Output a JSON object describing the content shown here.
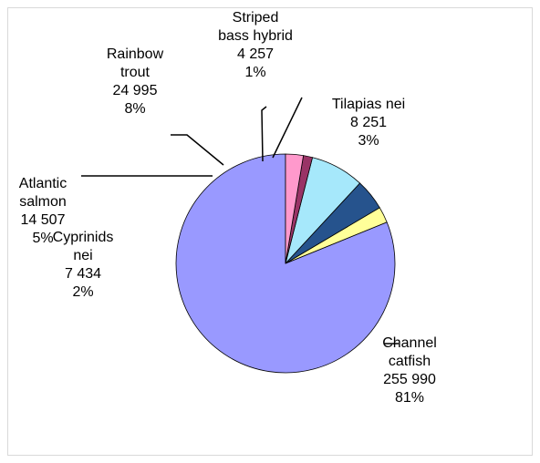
{
  "chart_data": {
    "type": "pie",
    "title": "",
    "categories": [
      "Channel catfish",
      "Cyprinids nei",
      "Atlantic salmon",
      "Rainbow trout",
      "Striped bass hybrid",
      "Tilapias nei"
    ],
    "label_lines": [
      [
        "Channel",
        "catfish",
        "255 990",
        "81%"
      ],
      [
        "Cyprinids",
        "nei",
        "7 434",
        "2%"
      ],
      [
        "Atlantic",
        "salmon",
        "14 507",
        "5%"
      ],
      [
        "Rainbow",
        "trout",
        "24 995",
        "8%"
      ],
      [
        "Striped",
        "bass hybrid",
        "4 257",
        "1%"
      ],
      [
        "Tilapias nei",
        "8 251",
        "3%"
      ]
    ],
    "values": [
      255990,
      7434,
      14507,
      24995,
      4257,
      8251
    ],
    "percent_labels": [
      "81%",
      "2%",
      "5%",
      "8%",
      "1%",
      "3%"
    ],
    "colors": [
      "#9999ff",
      "#ffff99",
      "#26538d",
      "#a6e8fb",
      "#993366",
      "#ff99cc"
    ],
    "legend": "none",
    "direction": "counterclockwise from 12 o'clock"
  }
}
